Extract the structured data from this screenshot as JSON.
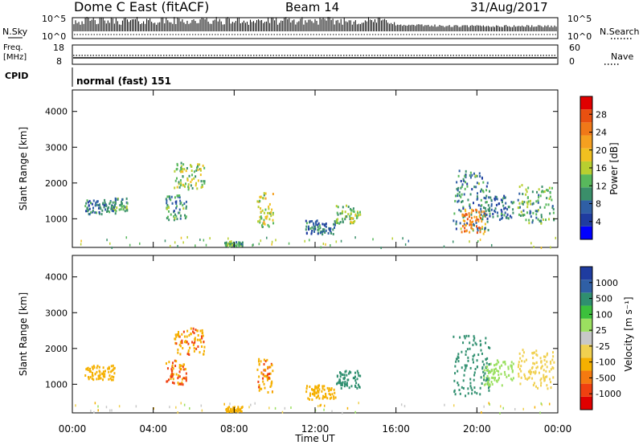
{
  "header": {
    "station": "Dome C East (fitACF)",
    "beam": "Beam 14",
    "date": "31/Aug/2017"
  },
  "status_panels": {
    "nsky_label": "N.Sky",
    "nsky_ticks": [
      "10^5",
      "10^0"
    ],
    "nsearch_label": "N.Search",
    "nsearch_ticks": [
      "10^5",
      "10^0"
    ],
    "freq_label_line1": "Freq.",
    "freq_label_line2": "[MHz]",
    "freq_ticks": [
      "18",
      "8"
    ],
    "nave_label": "Nave",
    "nave_ticks": [
      "60",
      "0"
    ],
    "cpid_label": "CPID",
    "cpid_value": "normal (fast) 151"
  },
  "colors": {
    "power": [
      "#0000ff",
      "#1f3ca0",
      "#2f5fa5",
      "#3a8f6a",
      "#58b85c",
      "#b8cf30",
      "#f0c020",
      "#f5a020",
      "#f07818",
      "#e85010",
      "#e00000"
    ],
    "velocity": [
      "#e00000",
      "#f04010",
      "#f57a10",
      "#f5b000",
      "#f0d050",
      "#c8c8c8",
      "#9be060",
      "#3cc03c",
      "#2f8f6f",
      "#2f5fa5",
      "#1f3ca0"
    ]
  },
  "chart_data": [
    {
      "type": "heatmap",
      "name": "power",
      "ylabel": "Slant Range [km]",
      "yticks": [
        1000,
        2000,
        3000,
        4000
      ],
      "ylim": [
        200,
        4600
      ],
      "xlim": [
        0,
        24
      ],
      "colorbar_label": "Power [dB]",
      "colorbar_ticks": [
        "4",
        "8",
        "12",
        "16",
        "20",
        "24",
        "28"
      ],
      "colorbar_range": [
        0,
        32
      ],
      "clusters": [
        {
          "t0": 0.6,
          "t1": 2.1,
          "r0": 1150,
          "r1": 1550,
          "v": 8
        },
        {
          "t0": 1.9,
          "t1": 2.7,
          "r0": 1250,
          "r1": 1600,
          "v": 12
        },
        {
          "t0": 5.0,
          "t1": 6.5,
          "r0": 1850,
          "r1": 2600,
          "v": 14
        },
        {
          "t0": 4.6,
          "t1": 5.6,
          "r0": 1000,
          "r1": 1700,
          "v": 10
        },
        {
          "t0": 7.5,
          "t1": 8.4,
          "r0": 260,
          "r1": 400,
          "v": 12
        },
        {
          "t0": 9.1,
          "t1": 9.9,
          "r0": 800,
          "r1": 1750,
          "v": 16
        },
        {
          "t0": 11.5,
          "t1": 13.0,
          "r0": 600,
          "r1": 1000,
          "v": 8
        },
        {
          "t0": 13.0,
          "t1": 14.2,
          "r0": 900,
          "r1": 1400,
          "v": 14
        },
        {
          "t0": 18.8,
          "t1": 20.6,
          "r0": 700,
          "r1": 2400,
          "v": 10
        },
        {
          "t0": 19.2,
          "t1": 20.4,
          "r0": 600,
          "r1": 1300,
          "v": 24
        },
        {
          "t0": 20.3,
          "t1": 21.8,
          "r0": 1000,
          "r1": 1700,
          "v": 8
        },
        {
          "t0": 22.0,
          "t1": 23.8,
          "r0": 900,
          "r1": 2000,
          "v": 12
        }
      ]
    },
    {
      "type": "heatmap",
      "name": "velocity",
      "ylabel": "Slant Range [km]",
      "yticks": [
        1000,
        2000,
        3000,
        4000
      ],
      "ylim": [
        200,
        4600
      ],
      "xlim": [
        0,
        24
      ],
      "xticks": [
        "00:00",
        "04:00",
        "08:00",
        "12:00",
        "16:00",
        "20:00",
        "00:00"
      ],
      "xlabel": "Time UT",
      "colorbar_label": "Velocity [m s⁻¹]",
      "colorbar_ticks": [
        "-1000",
        "-500",
        "-100",
        "-25",
        "25",
        "100",
        "500",
        "1000"
      ],
      "clusters": [
        {
          "t0": 0.6,
          "t1": 2.1,
          "r0": 1150,
          "r1": 1550,
          "v": -300
        },
        {
          "t0": 5.0,
          "t1": 6.5,
          "r0": 1850,
          "r1": 2600,
          "v": -400
        },
        {
          "t0": 4.6,
          "t1": 5.6,
          "r0": 1000,
          "r1": 1700,
          "v": -500
        },
        {
          "t0": 7.5,
          "t1": 8.4,
          "r0": 260,
          "r1": 400,
          "v": -200
        },
        {
          "t0": 9.1,
          "t1": 9.9,
          "r0": 800,
          "r1": 1750,
          "v": -400
        },
        {
          "t0": 11.5,
          "t1": 13.0,
          "r0": 600,
          "r1": 1000,
          "v": -300
        },
        {
          "t0": 13.0,
          "t1": 14.2,
          "r0": 900,
          "r1": 1400,
          "v": 200
        },
        {
          "t0": 18.8,
          "t1": 20.6,
          "r0": 700,
          "r1": 2400,
          "v": 300
        },
        {
          "t0": 20.3,
          "t1": 21.8,
          "r0": 1000,
          "r1": 1700,
          "v": 60
        },
        {
          "t0": 22.0,
          "t1": 23.8,
          "r0": 900,
          "r1": 2000,
          "v": -60
        }
      ]
    }
  ]
}
